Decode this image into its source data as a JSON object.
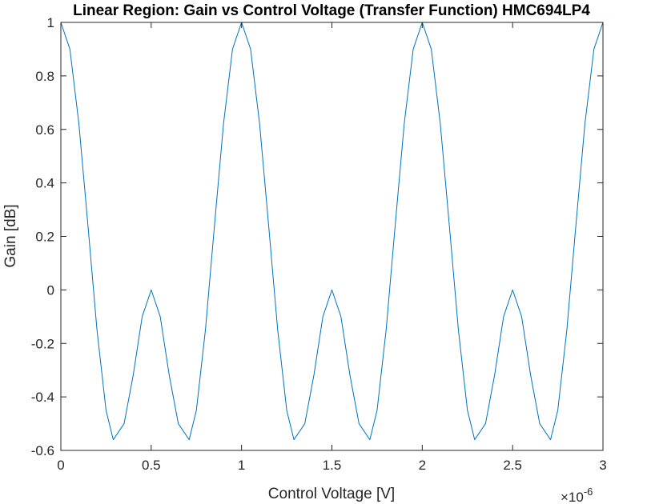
{
  "chart_data": {
    "type": "line",
    "title": "Linear Region: Gain vs Control Voltage (Transfer Function) HMC694LP4",
    "xlabel": "Control Voltage [V]",
    "ylabel": "Gain [dB]",
    "x_exponent_label": "×10",
    "x_exponent_power": "-6",
    "xlim": [
      0,
      3e-06
    ],
    "ylim": [
      -0.6,
      1
    ],
    "x_ticks": [
      0,
      5e-07,
      1e-06,
      1.5e-06,
      2e-06,
      2.5e-06,
      3e-06
    ],
    "x_tick_labels": [
      "0",
      "0.5",
      "1",
      "1.5",
      "2",
      "2.5",
      "3"
    ],
    "y_ticks": [
      -0.6,
      -0.4,
      -0.2,
      0,
      0.2,
      0.4,
      0.6,
      0.8,
      1
    ],
    "y_tick_labels": [
      "-0.6",
      "-0.4",
      "-0.2",
      "0",
      "0.2",
      "0.4",
      "0.6",
      "0.8",
      "1"
    ],
    "grid": false,
    "series": [
      {
        "color": "#0072BD",
        "x": [
          0,
          5e-08,
          1e-07,
          1.5e-07,
          2e-07,
          2.5e-07,
          2.9e-07,
          3.5e-07,
          4e-07,
          4.5e-07,
          5e-07,
          5.5e-07,
          6e-07,
          6.5e-07,
          7.1e-07,
          7.5e-07,
          8e-07,
          8.5e-07,
          9e-07,
          9.5e-07,
          1e-06,
          1.05e-06,
          1.1e-06,
          1.15e-06,
          1.2e-06,
          1.25e-06,
          1.29e-06,
          1.35e-06,
          1.4e-06,
          1.45e-06,
          1.5e-06,
          1.55e-06,
          1.6e-06,
          1.65e-06,
          1.71e-06,
          1.75e-06,
          1.8e-06,
          1.85e-06,
          1.9e-06,
          1.95e-06,
          2e-06,
          2.05e-06,
          2.1e-06,
          2.15e-06,
          2.2e-06,
          2.25e-06,
          2.29e-06,
          2.35e-06,
          2.4e-06,
          2.45e-06,
          2.5e-06,
          2.55e-06,
          2.6e-06,
          2.65e-06,
          2.71e-06,
          2.75e-06,
          2.8e-06,
          2.85e-06,
          2.9e-06,
          2.95e-06,
          3e-06
        ],
        "y": [
          1.0,
          0.9,
          0.62,
          0.24,
          -0.15,
          -0.45,
          -0.56,
          -0.5,
          -0.32,
          -0.1,
          0.0,
          -0.1,
          -0.32,
          -0.5,
          -0.56,
          -0.45,
          -0.15,
          0.24,
          0.62,
          0.9,
          1.0,
          0.9,
          0.62,
          0.24,
          -0.15,
          -0.45,
          -0.56,
          -0.5,
          -0.32,
          -0.1,
          0.0,
          -0.1,
          -0.32,
          -0.5,
          -0.56,
          -0.45,
          -0.15,
          0.24,
          0.62,
          0.9,
          1.0,
          0.9,
          0.62,
          0.24,
          -0.15,
          -0.45,
          -0.56,
          -0.5,
          -0.32,
          -0.1,
          0.0,
          -0.1,
          -0.32,
          -0.5,
          -0.56,
          -0.45,
          -0.15,
          0.24,
          0.62,
          0.9,
          1.0
        ]
      }
    ]
  }
}
